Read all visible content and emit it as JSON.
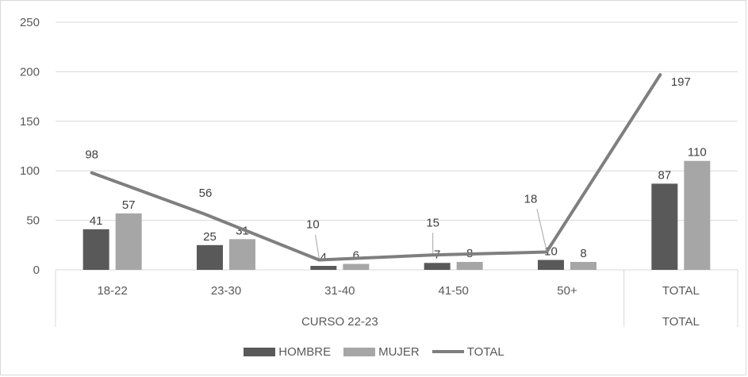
{
  "chart_data": {
    "type": "bar",
    "categories": [
      "18-22",
      "23-30",
      "31-40",
      "41-50",
      "50+",
      "TOTAL"
    ],
    "groups": [
      "CURSO 22-23",
      "TOTAL"
    ],
    "series": [
      {
        "name": "HOMBRE",
        "type": "bar",
        "color": "#595959",
        "values": [
          41,
          25,
          4,
          7,
          10,
          87
        ]
      },
      {
        "name": "MUJER",
        "type": "bar",
        "color": "#a6a6a6",
        "values": [
          57,
          31,
          6,
          8,
          8,
          110
        ]
      },
      {
        "name": "TOTAL",
        "type": "line",
        "color": "#7f7f7f",
        "values": [
          98,
          56,
          10,
          15,
          18,
          197
        ]
      }
    ],
    "y_ticks": [
      0,
      50,
      100,
      150,
      200,
      250
    ],
    "ylim": [
      0,
      250
    ],
    "grid": true,
    "legend_position": "bottom"
  }
}
